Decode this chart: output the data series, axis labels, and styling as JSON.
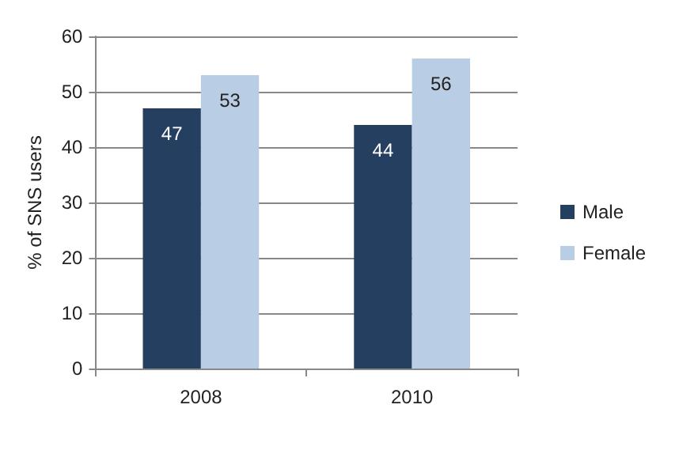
{
  "chart_data": {
    "type": "bar",
    "ylabel": "% of SNS users",
    "categories": [
      "2008",
      "2010"
    ],
    "series": [
      {
        "name": "Male",
        "color": "#243f60",
        "values": [
          47,
          44
        ]
      },
      {
        "name": "Female",
        "color": "#b9cde5",
        "values": [
          53,
          56
        ]
      }
    ],
    "ylim": [
      0,
      60
    ],
    "yticks": [
      0,
      10,
      20,
      30,
      40,
      50,
      60
    ],
    "grid": "y",
    "legend": "right",
    "data_labels": true
  }
}
